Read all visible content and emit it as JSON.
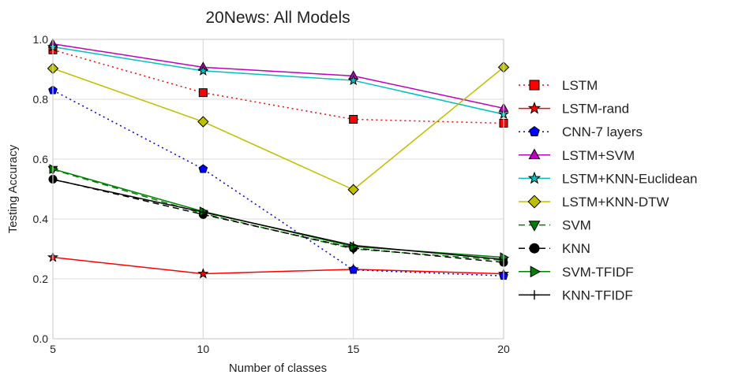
{
  "chart_data": {
    "type": "line",
    "title": "20News: All Models",
    "xlabel": "Number of classes",
    "ylabel": "Testing Accuracy",
    "x": [
      5,
      10,
      15,
      20
    ],
    "xlim": [
      5,
      20
    ],
    "ylim": [
      0.0,
      1.0
    ],
    "xticks": [
      "5",
      "10",
      "15",
      "20"
    ],
    "yticks": [
      "0.0",
      "0.2",
      "0.4",
      "0.6",
      "0.8",
      "1.0"
    ],
    "grid": true,
    "legend_position": "right",
    "series": [
      {
        "name": "LSTM",
        "values": [
          0.965,
          0.822,
          0.733,
          0.72
        ],
        "color": "#ff0000",
        "dash": "dotted",
        "marker": "square",
        "markerFill": "#ff0000"
      },
      {
        "name": "LSTM-rand",
        "values": [
          0.272,
          0.217,
          0.232,
          0.217
        ],
        "color": "#ff0000",
        "dash": "solid",
        "marker": "star",
        "markerFill": "#ff0000"
      },
      {
        "name": "CNN-7 layers",
        "values": [
          0.83,
          0.567,
          0.23,
          0.21
        ],
        "color": "#0000cc",
        "dash": "dotted",
        "marker": "pentagon",
        "markerFill": "#0000ff"
      },
      {
        "name": "LSTM+SVM",
        "values": [
          0.985,
          0.907,
          0.878,
          0.77
        ],
        "color": "#bf00bf",
        "dash": "solid",
        "marker": "triangle-up",
        "markerFill": "#bf00bf"
      },
      {
        "name": "LSTM+KNN-Euclidean",
        "values": [
          0.975,
          0.895,
          0.863,
          0.75
        ],
        "color": "#00bfbf",
        "dash": "solid",
        "marker": "star",
        "markerFill": "#00bfbf"
      },
      {
        "name": "LSTM+KNN-DTW",
        "values": [
          0.903,
          0.725,
          0.498,
          0.907
        ],
        "color": "#bfbf00",
        "dash": "solid",
        "marker": "diamond",
        "markerFill": "#bfbf00"
      },
      {
        "name": "SVM",
        "values": [
          0.565,
          0.418,
          0.3,
          0.262
        ],
        "color": "#008000",
        "dash": "dashed",
        "marker": "triangle-down",
        "markerFill": "#008000"
      },
      {
        "name": "KNN",
        "values": [
          0.533,
          0.415,
          0.303,
          0.255
        ],
        "color": "#000000",
        "dash": "dashed",
        "marker": "circle",
        "markerFill": "#000000"
      },
      {
        "name": "SVM-TFIDF",
        "values": [
          0.567,
          0.425,
          0.308,
          0.272
        ],
        "color": "#008000",
        "dash": "solid",
        "marker": "triangle-right",
        "markerFill": "#008000"
      },
      {
        "name": "KNN-TFIDF",
        "values": [
          0.532,
          0.423,
          0.312,
          0.265
        ],
        "color": "#000000",
        "dash": "solid",
        "marker": "plus",
        "markerFill": "#000000"
      }
    ]
  }
}
